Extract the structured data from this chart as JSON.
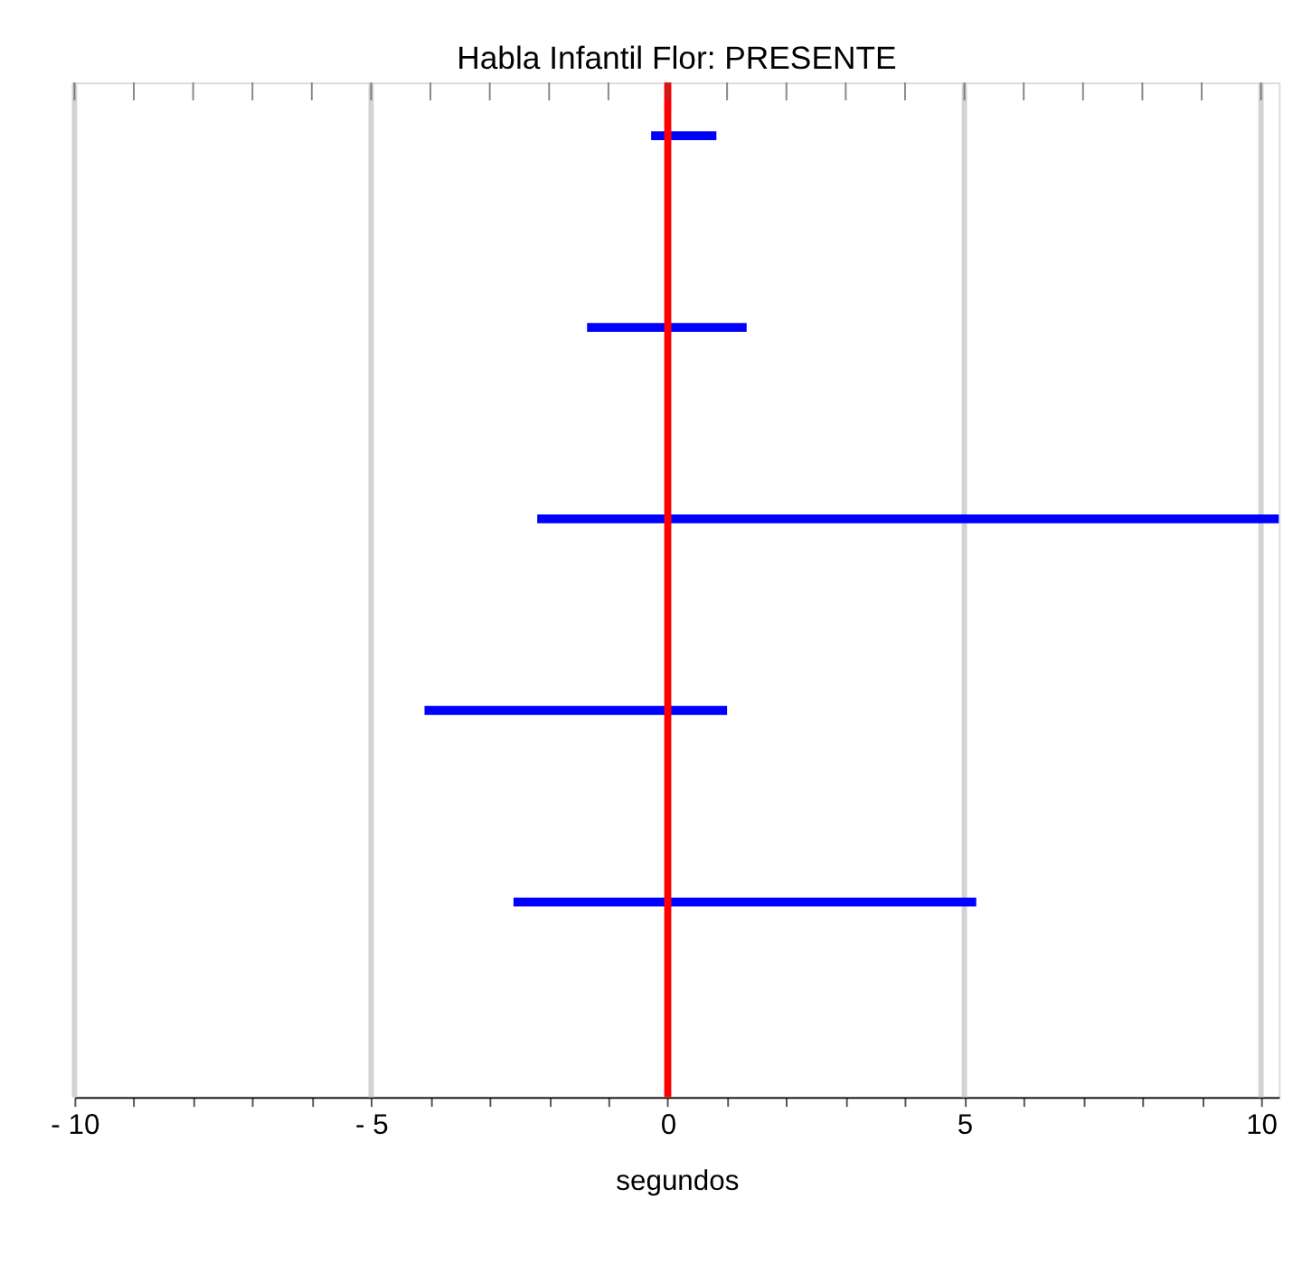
{
  "chart_data": {
    "type": "bar",
    "orientation": "horizontal",
    "title": "Habla Infantil Flor: PRESENTE",
    "xlabel": "segundos",
    "categories": [
      null,
      null,
      null,
      null,
      null
    ],
    "base": [
      -0.28,
      -1.36,
      -2.2,
      -4.1,
      -2.6
    ],
    "values": [
      1.1,
      2.69,
      12.5,
      5.1,
      7.8
    ],
    "color": "#0000ff",
    "xlim": [
      -10,
      10.3
    ],
    "xticks": [
      {
        "value": -10,
        "label": "- 10"
      },
      {
        "value": -9,
        "label": null
      },
      {
        "value": -8,
        "label": null
      },
      {
        "value": -7,
        "label": null
      },
      {
        "value": -6,
        "label": null
      },
      {
        "value": -5,
        "label": "- 5"
      },
      {
        "value": -4,
        "label": null
      },
      {
        "value": -3,
        "label": null
      },
      {
        "value": -2,
        "label": null
      },
      {
        "value": -1,
        "label": null
      },
      0,
      {
        "value": 1,
        "label": null
      },
      {
        "value": 2,
        "label": null
      },
      {
        "value": 3,
        "label": null
      },
      {
        "value": 4,
        "label": null
      },
      5,
      {
        "value": 6,
        "label": null
      },
      {
        "value": 7,
        "label": null
      },
      {
        "value": 8,
        "label": null
      },
      {
        "value": 9,
        "label": null
      },
      10
    ],
    "ref_lines": [
      {
        "axis": "x",
        "value": 0,
        "color": "#ff0000"
      }
    ],
    "grid": "x",
    "tick_labels": "x"
  }
}
